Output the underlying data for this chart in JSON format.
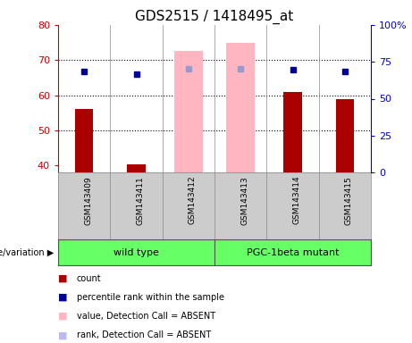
{
  "title": "GDS2515 / 1418495_at",
  "samples": [
    "GSM143409",
    "GSM143411",
    "GSM143412",
    "GSM143413",
    "GSM143414",
    "GSM143415"
  ],
  "ylim_left": [
    38,
    80
  ],
  "ylim_right": [
    0,
    100
  ],
  "yticks_left": [
    40,
    50,
    60,
    70,
    80
  ],
  "yticks_right": [
    0,
    25,
    50,
    75,
    100
  ],
  "ytick_labels_right": [
    "0",
    "25",
    "50",
    "75",
    "100%"
  ],
  "count_values": [
    56.0,
    40.3,
    null,
    null,
    61.0,
    59.0
  ],
  "pink_bar_values": [
    null,
    null,
    72.5,
    74.8,
    null,
    null
  ],
  "blue_dot_values": [
    68.5,
    66.5,
    null,
    null,
    69.5,
    68.5
  ],
  "light_blue_dot_values": [
    null,
    null,
    70.5,
    70.5,
    null,
    null
  ],
  "left_axis_color": "#CC0000",
  "right_axis_color": "#0000CC",
  "bar_color_red": "#AA0000",
  "bar_color_pink": "#FFB6C1",
  "dot_color_blue": "#000099",
  "dot_color_lightblue": "#9999CC",
  "sample_area_color": "#CCCCCC",
  "wildtype_color": "#66FF66",
  "mutant_color": "#66FF66",
  "legend_items": [
    {
      "color": "#AA0000",
      "label": "count"
    },
    {
      "color": "#000099",
      "label": "percentile rank within the sample"
    },
    {
      "color": "#FFB6C1",
      "label": "value, Detection Call = ABSENT"
    },
    {
      "color": "#BBBBEE",
      "label": "rank, Detection Call = ABSENT"
    }
  ],
  "wild_type_label": "wild type",
  "mutant_label": "PGC-1beta mutant",
  "genotype_label": "genotype/variation"
}
